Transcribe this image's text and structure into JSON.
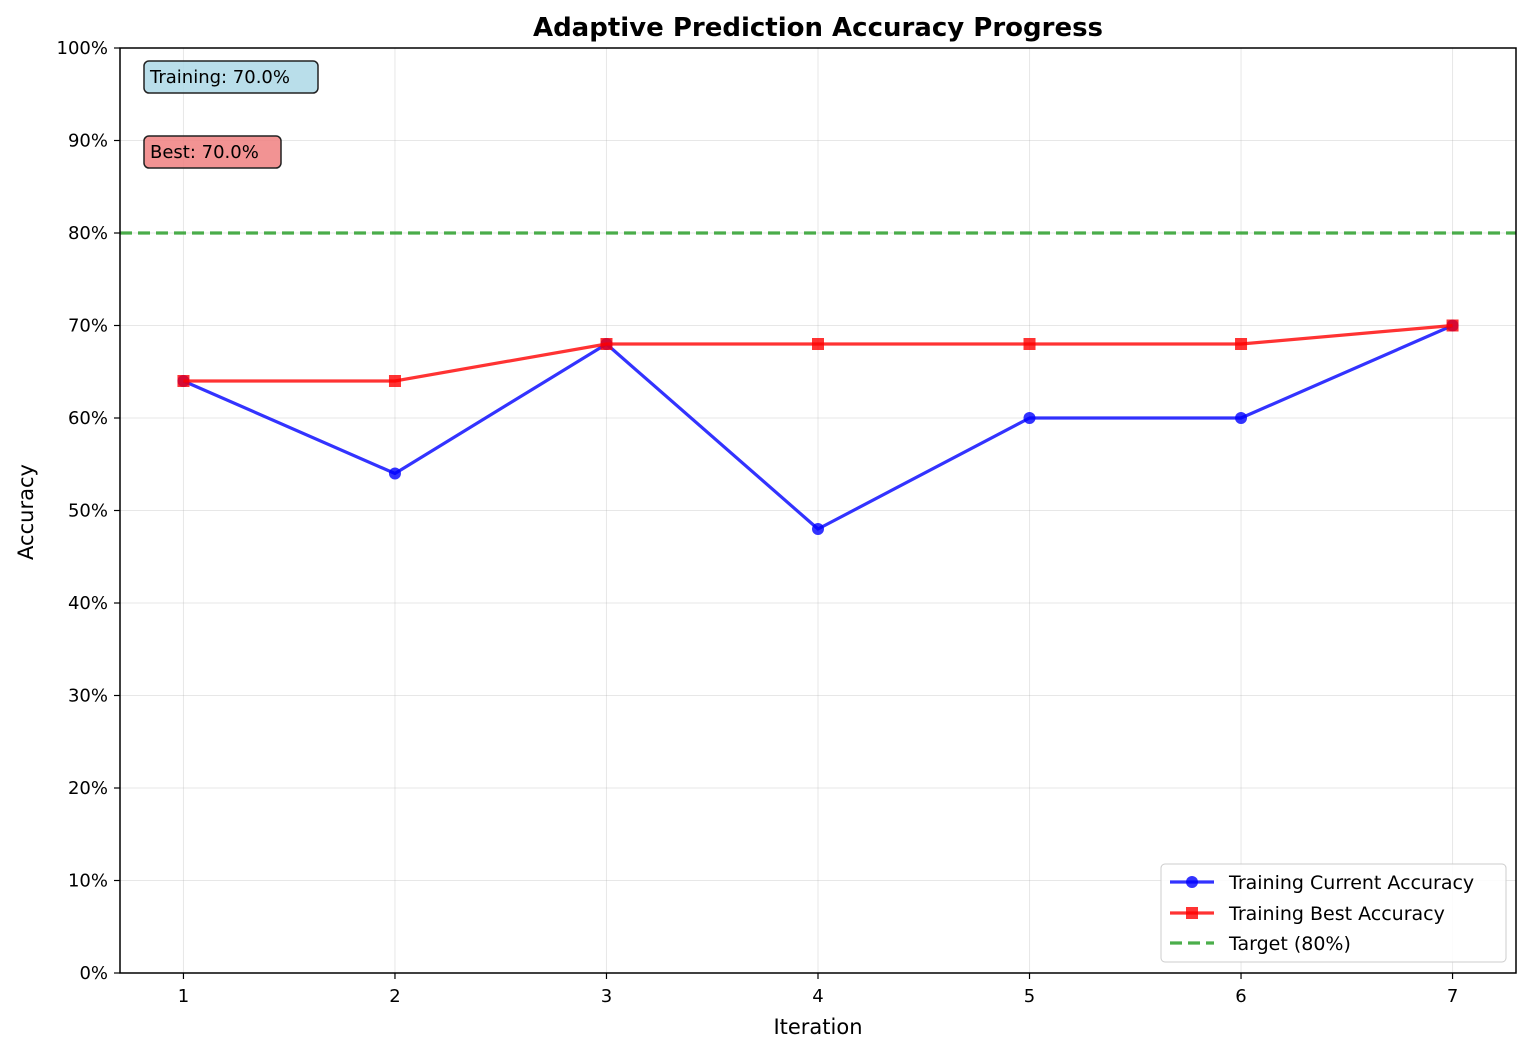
{
  "chart_data": {
    "type": "line",
    "title": "Adaptive Prediction Accuracy Progress",
    "xlabel": "Iteration",
    "ylabel": "Accuracy",
    "x": [
      1,
      2,
      3,
      4,
      5,
      6,
      7
    ],
    "xlim": [
      0.7,
      7.3
    ],
    "ylim": [
      0,
      100
    ],
    "yticks": [
      0,
      10,
      20,
      30,
      40,
      50,
      60,
      70,
      80,
      90,
      100
    ],
    "ytick_labels": [
      "0%",
      "10%",
      "20%",
      "30%",
      "40%",
      "50%",
      "60%",
      "70%",
      "80%",
      "90%",
      "100%"
    ],
    "xtick_labels": [
      "1",
      "2",
      "3",
      "4",
      "5",
      "6",
      "7"
    ],
    "grid": true,
    "legend_position": "lower-right",
    "series": [
      {
        "name": "Training Current Accuracy",
        "values": [
          64,
          54,
          68,
          48,
          60,
          60,
          70
        ],
        "color": "#0000ff",
        "marker": "circle"
      },
      {
        "name": "Training Best Accuracy",
        "values": [
          64,
          64,
          68,
          68,
          68,
          68,
          70
        ],
        "color": "#ff0000",
        "marker": "square"
      }
    ],
    "reference_line": {
      "name": "Target (80%)",
      "value": 80,
      "color": "#2ca02c",
      "style": "dashed"
    },
    "annotations": [
      {
        "text": "Training: 70.0%",
        "bg": "#add8e6"
      },
      {
        "text": "Best: 70.0%",
        "bg": "#f08080"
      }
    ]
  }
}
